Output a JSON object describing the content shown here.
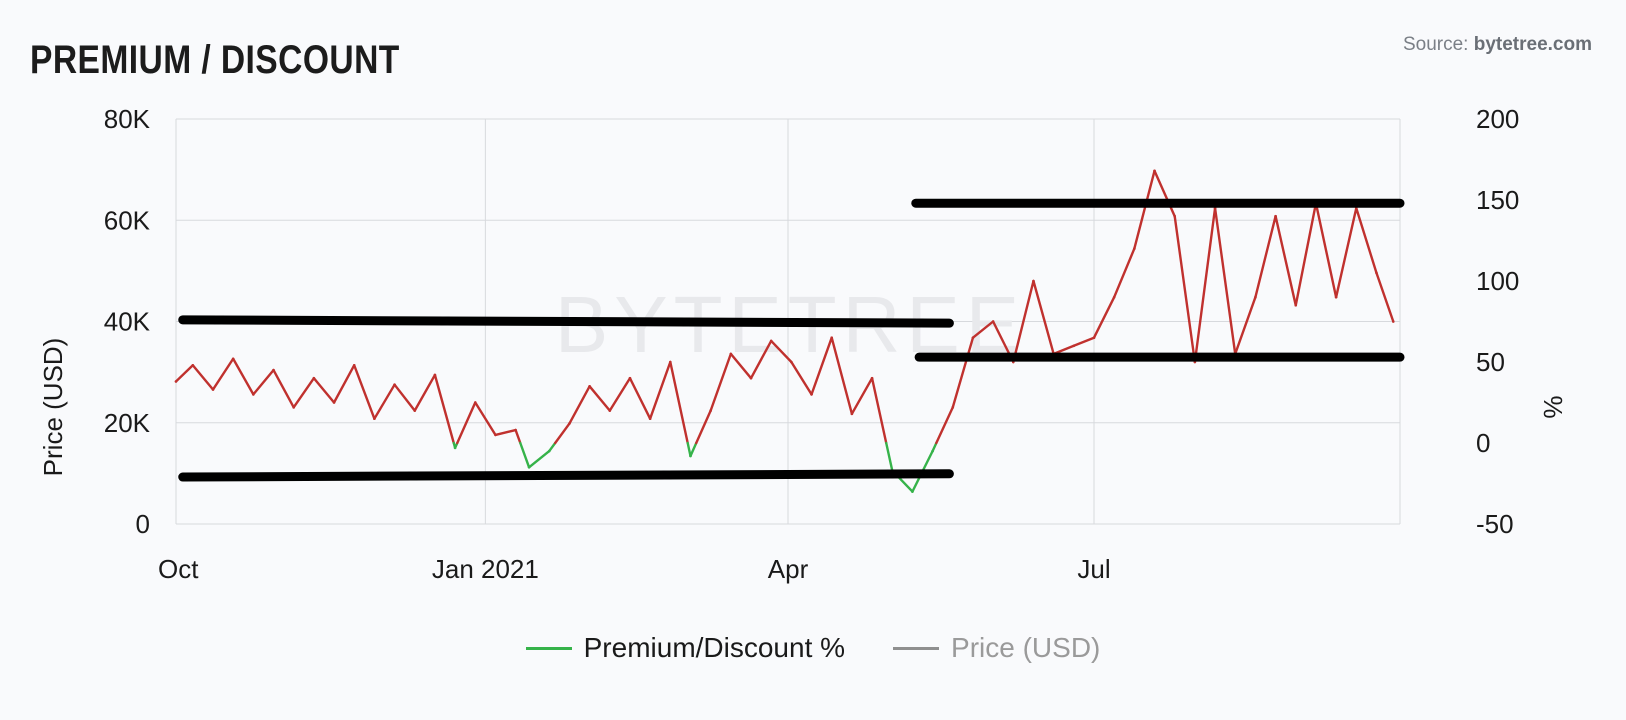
{
  "header": {
    "title": "PREMIUM / DISCOUNT",
    "source_prefix": "Source: ",
    "source_site": "bytetree.com"
  },
  "watermark": "BYTETREE",
  "colors": {
    "premium_positive": "#c0312e",
    "premium_negative": "#36b34a",
    "price": "#8f8f8f",
    "reference_lines": "#000000",
    "grid": "#d7d9dd"
  },
  "chart_data": {
    "type": "line",
    "title": "PREMIUM / DISCOUNT",
    "x_ticks": [
      "Oct",
      "Jan 2021",
      "Apr",
      "Jul"
    ],
    "x_tick_dates": [
      "2020-10-01",
      "2021-01-01",
      "2021-04-01",
      "2021-07-01"
    ],
    "x_range": [
      "2020-10-01",
      "2021-09-30"
    ],
    "y_left": {
      "label": "Price (USD)",
      "range": [
        0,
        80000
      ],
      "ticks": [
        "0",
        "20K",
        "40K",
        "60K",
        "80K"
      ],
      "tick_values": [
        0,
        20000,
        40000,
        60000,
        80000
      ]
    },
    "y_right": {
      "label": "%",
      "range": [
        -50,
        200
      ],
      "ticks": [
        "-50",
        "0",
        "50",
        "100",
        "150",
        "200"
      ],
      "tick_values": [
        -50,
        0,
        50,
        100,
        150,
        200
      ]
    },
    "grid": true,
    "legend_position": "bottom-center",
    "series": [
      {
        "name": "Premium/Discount %",
        "axis": "right",
        "x": [
          "2020-10-01",
          "2020-10-06",
          "2020-10-12",
          "2020-10-18",
          "2020-10-24",
          "2020-10-30",
          "2020-11-05",
          "2020-11-11",
          "2020-11-17",
          "2020-11-23",
          "2020-11-29",
          "2020-12-05",
          "2020-12-11",
          "2020-12-17",
          "2020-12-23",
          "2020-12-29",
          "2021-01-04",
          "2021-01-10",
          "2021-01-14",
          "2021-01-20",
          "2021-01-26",
          "2021-02-01",
          "2021-02-07",
          "2021-02-13",
          "2021-02-19",
          "2021-02-25",
          "2021-03-03",
          "2021-03-09",
          "2021-03-15",
          "2021-03-21",
          "2021-03-27",
          "2021-04-02",
          "2021-04-08",
          "2021-04-14",
          "2021-04-20",
          "2021-04-26",
          "2021-05-02",
          "2021-05-08",
          "2021-05-14",
          "2021-05-20",
          "2021-05-26",
          "2021-06-01",
          "2021-06-07",
          "2021-06-13",
          "2021-06-19",
          "2021-06-25",
          "2021-07-01",
          "2021-07-07",
          "2021-07-13",
          "2021-07-19",
          "2021-07-25",
          "2021-07-31",
          "2021-08-06",
          "2021-08-12",
          "2021-08-18",
          "2021-08-24",
          "2021-08-30",
          "2021-09-05",
          "2021-09-11",
          "2021-09-17",
          "2021-09-23",
          "2021-09-28"
        ],
        "values": [
          38,
          48,
          33,
          52,
          30,
          45,
          22,
          40,
          25,
          48,
          15,
          36,
          20,
          42,
          -3,
          25,
          5,
          8,
          -15,
          -5,
          12,
          35,
          20,
          40,
          15,
          50,
          -8,
          20,
          55,
          40,
          63,
          50,
          30,
          65,
          18,
          40,
          -17,
          -30,
          -5,
          22,
          65,
          75,
          50,
          100,
          55,
          60,
          65,
          90,
          120,
          168,
          140,
          50,
          145,
          55,
          90,
          140,
          85,
          148,
          90,
          145,
          105,
          75
        ]
      },
      {
        "name": "Price (USD)",
        "axis": "left",
        "x": [],
        "values": []
      }
    ],
    "reference_lines": [
      {
        "axis": "right",
        "x": [
          "2020-10-03",
          "2021-05-19"
        ],
        "y": [
          76,
          74
        ]
      },
      {
        "axis": "right",
        "x": [
          "2020-10-03",
          "2021-05-19"
        ],
        "y": [
          -21,
          -19
        ]
      },
      {
        "axis": "right",
        "x": [
          "2021-05-09",
          "2021-09-30"
        ],
        "y": [
          148,
          148
        ]
      },
      {
        "axis": "right",
        "x": [
          "2021-05-10",
          "2021-09-30"
        ],
        "y": [
          53,
          53
        ]
      }
    ]
  },
  "legend": {
    "items": [
      {
        "label": "Premium/Discount %",
        "color": "#36b34a"
      },
      {
        "label": "Price (USD)",
        "color": "#8f8f8f"
      }
    ]
  }
}
